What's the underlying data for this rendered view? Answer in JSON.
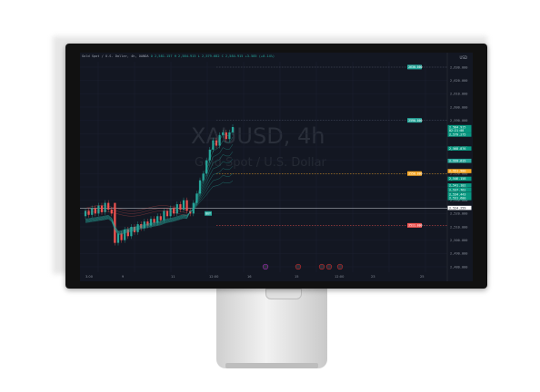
{
  "screen": {
    "currency": "USD",
    "header": {
      "symbol_line": "Gold Spot / U.S. Dollar, 4h, OANDA",
      "ohlc_line": "O 2,581.157  H 2,584.915  L 2,579.682  C 2,584.915  +3.585 (+0.14%)"
    },
    "watermark_title": "XAUUSD, 4h",
    "watermark_subtitle": "Gold Spot / U.S. Dollar",
    "y_axis": {
      "ticks": [
        "2,630.000",
        "2,620.000",
        "2,610.000",
        "2,600.000",
        "2,590.000",
        "2,580.000",
        "2,570.000",
        "2,560.000",
        "2,550.000",
        "2,540.000",
        "2,530.000",
        "2,520.000",
        "2,510.000",
        "2,500.000",
        "2,490.000",
        "2,480.000"
      ]
    },
    "x_axis": {
      "ticks": [
        "3.00",
        "9",
        "11",
        "12:00",
        "16",
        "15",
        "12:00",
        "23",
        "25"
      ]
    },
    "price_labels": [
      {
        "text": "2,584.915",
        "color": "#089981"
      },
      {
        "text": "02:21:08",
        "color": "#089981"
      },
      {
        "text": "2,579.275",
        "color": "#089981"
      },
      {
        "text": "2,568.876",
        "color": "#089981"
      },
      {
        "text": "2,559.615",
        "color": "#26a69a"
      },
      {
        "text": "2,551.900",
        "color": "#f5a623"
      },
      {
        "text": "2,546.158",
        "color": "#089981"
      },
      {
        "text": "2,541.102",
        "color": "#089981"
      },
      {
        "text": "2,537.762",
        "color": "#089981"
      },
      {
        "text": "2,534.443",
        "color": "#089981"
      },
      {
        "text": "2,531.600",
        "color": "#089981"
      },
      {
        "text": "2,524.259",
        "color": "#ffffff"
      }
    ],
    "chart_tags": [
      {
        "text": "2630.000",
        "color": "#26a69a"
      },
      {
        "text": "2590.000",
        "color": "#26a69a"
      },
      {
        "text": "2550.000",
        "color": "#f5a623"
      },
      {
        "text": "2511.000",
        "color": "#ef5350"
      },
      {
        "text": "BUY",
        "color": "#26a69a"
      }
    ],
    "colors": {
      "background": "#131722",
      "up": "#26a69a",
      "down": "#ef5350"
    }
  }
}
